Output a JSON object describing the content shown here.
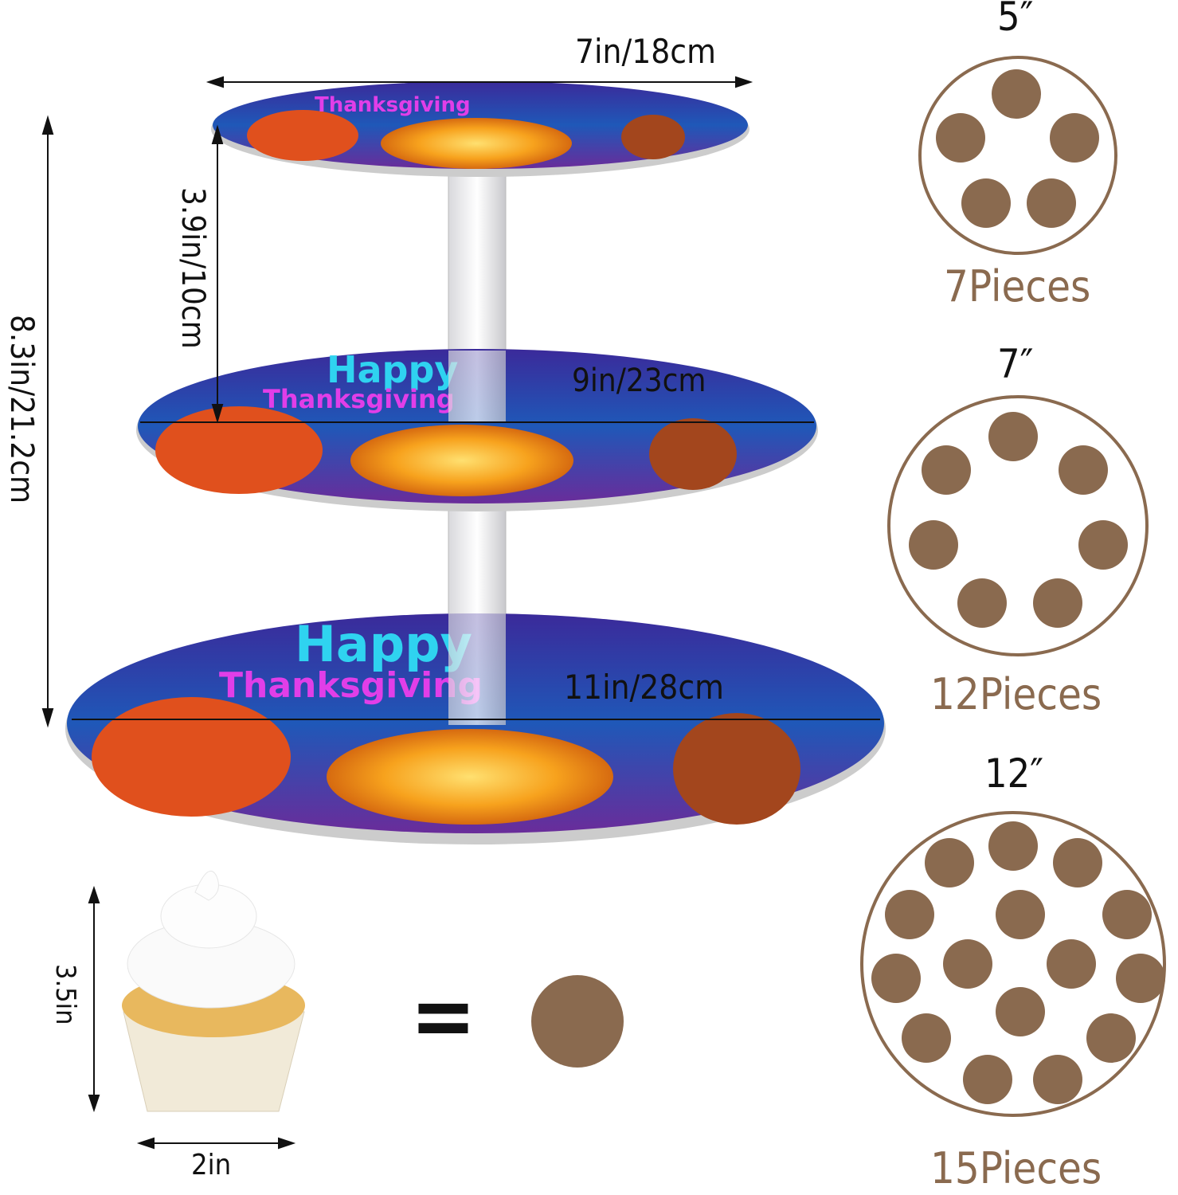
{
  "dimensions": {
    "top_width": "7in/18cm",
    "middle_width": "9in/23cm",
    "bottom_width": "11in/28cm",
    "tier_gap": "3.9in/10cm",
    "total_height": "8.3in/21.2cm",
    "cupcake_height": "3.5in",
    "cupcake_width": "2in"
  },
  "tier_print_text": [
    "Happy",
    "Thanksgiving"
  ],
  "equals_sign": "=",
  "capacity": [
    {
      "size": "5″",
      "pieces": "7Pieces",
      "dots": 5
    },
    {
      "size": "7″",
      "pieces": "12Pieces",
      "dots": 7
    },
    {
      "size": "12″",
      "pieces": "15Pieces",
      "dots": 15
    }
  ],
  "colors": {
    "dot": "#8a6a4f",
    "text_happy": "#2fd3f0",
    "text_thanks": "#e13ee8",
    "pumpkin": "#f59a1b",
    "background": "#1e2d7a"
  }
}
